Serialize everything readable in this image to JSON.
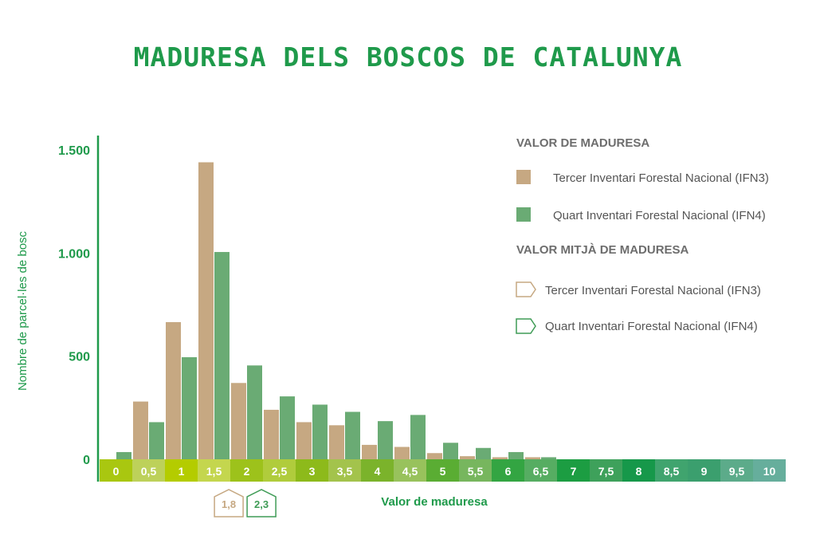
{
  "title": "MADURESA DELS BOSCOS DE CATALUNYA",
  "colors": {
    "title": "#1f9a4b",
    "ifn3": "#c6a882",
    "ifn4": "#6aab74",
    "ifn3_marker": "#c6a882",
    "ifn4_marker": "#3f9c56",
    "axis": "#1f9a4b"
  },
  "legend": {
    "section1_title": "VALOR DE MADURESA",
    "section2_title": "VALOR MITJÀ DE MADURESA",
    "ifn3_label": "Tercer Inventari Forestal Nacional (IFN3)",
    "ifn4_label": "Quart Inventari Forestal Nacional (IFN4)",
    "mean_ifn3_label": "Tercer Inventari Forestal Nacional (IFN3)",
    "mean_ifn4_label": "Quart Inventari Forestal Nacional (IFN4)"
  },
  "chart_data": {
    "type": "bar",
    "xlabel": "Valor de maduresa",
    "ylabel": "Nombre de parcel·les de bosc",
    "ylim": [
      0,
      1500
    ],
    "yticks": [
      {
        "value": 0,
        "label": "0"
      },
      {
        "value": 500,
        "label": "500"
      },
      {
        "value": 1000,
        "label": "1.000"
      },
      {
        "value": 1500,
        "label": "1.500"
      }
    ],
    "categories": [
      "0",
      "0,5",
      "1",
      "1,5",
      "2",
      "2,5",
      "3",
      "3,5",
      "4",
      "4,5",
      "5",
      "5,5",
      "6",
      "6,5",
      "7",
      "7,5",
      "8",
      "8,5",
      "9",
      "9,5",
      "10"
    ],
    "category_colors": [
      "#a9c710",
      "#bdd15a",
      "#b4cc00",
      "#c4d64e",
      "#9dc21b",
      "#b0cc3c",
      "#8dba1b",
      "#a3c34c",
      "#7bb32b",
      "#98c25c",
      "#5aad33",
      "#77b65e",
      "#33a542",
      "#56ad62",
      "#1c9d42",
      "#3ea15b",
      "#16984a",
      "#40a46e",
      "#3b9f6e",
      "#5cab8a",
      "#66ae9c"
    ],
    "series": [
      {
        "name": "Tercer Inventari Forestal Nacional (IFN3)",
        "values": [
          0,
          280,
          665,
          1440,
          370,
          240,
          180,
          165,
          70,
          60,
          30,
          15,
          10,
          10,
          0,
          0,
          0,
          0,
          0,
          0,
          0
        ]
      },
      {
        "name": "Quart Inventari Forestal Nacional (IFN4)",
        "values": [
          35,
          180,
          495,
          1005,
          455,
          305,
          265,
          230,
          185,
          215,
          80,
          55,
          35,
          10,
          0,
          0,
          0,
          0,
          0,
          0,
          0
        ]
      }
    ],
    "means": [
      {
        "series": "Tercer Inventari Forestal Nacional (IFN3)",
        "value": 1.8,
        "label": "1,8"
      },
      {
        "series": "Quart Inventari Forestal Nacional (IFN4)",
        "value": 2.3,
        "label": "2,3"
      }
    ],
    "grid": false,
    "legend_position": "top-right"
  }
}
